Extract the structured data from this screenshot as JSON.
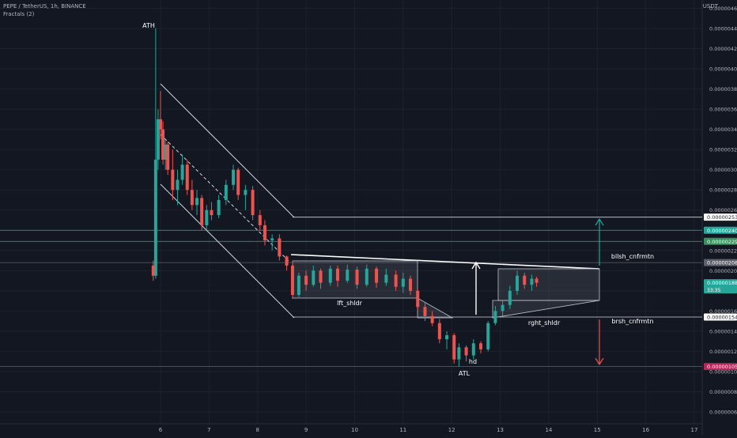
{
  "header": {
    "title": "PEPE / TetherUS, 1h, BINANCE",
    "indicator": "Fractals (2)",
    "currency": "USDT"
  },
  "chart_data": {
    "type": "candlestick",
    "x_ticks": [
      "6",
      "7",
      "8",
      "9",
      "10",
      "11",
      "12",
      "13",
      "14",
      "15",
      "16",
      "17"
    ],
    "y_ticks": [
      "0.00000460",
      "0.00000440",
      "0.00000420",
      "0.00000400",
      "0.00000380",
      "0.00000360",
      "0.00000340",
      "0.00000320",
      "0.00000300",
      "0.00000280",
      "0.00000260",
      "0.00000240",
      "0.00000220",
      "0.00000200",
      "0.00000180",
      "0.00000160",
      "0.00000140",
      "0.00000120",
      "0.00000100",
      "0.00000080",
      "0.00000060"
    ],
    "ylim": [
      5.5e-07,
      4.63e-06
    ],
    "xlim": [
      5.2,
      17.2
    ],
    "price_tags": [
      {
        "value": "0.00000253",
        "y": 2.53e-06,
        "bg": "#ffffff",
        "fg": "#131722"
      },
      {
        "value": "0.00000240",
        "y": 2.4e-06,
        "bg": "#26a69a",
        "fg": "#ffffff"
      },
      {
        "value": "0.00000229",
        "y": 2.29e-06,
        "bg": "#3b8f5e",
        "fg": "#ffffff"
      },
      {
        "value": "0.00000208",
        "y": 2.08e-06,
        "bg": "#5d606b",
        "fg": "#ffffff"
      },
      {
        "value": "0.00000188",
        "y": 1.88e-06,
        "bg": "#26a69a",
        "fg": "#ffffff",
        "sub": "33:35"
      },
      {
        "value": "0.00000154",
        "y": 1.54e-06,
        "bg": "#ffffff",
        "fg": "#131722"
      },
      {
        "value": "0.00000105",
        "y": 1.05e-06,
        "bg": "#b22858",
        "fg": "#ffffff"
      }
    ],
    "annotations": [
      "ATH",
      "lft_shldr",
      "hd",
      "ATL",
      "rght_shldr",
      "bllsh_cnfrmtn",
      "brsh_cnfrmtn"
    ],
    "candles": [
      [
        5.85,
        2.05e-06,
        2.1e-06,
        1.9e-06,
        1.95e-06
      ],
      [
        5.9,
        1.95e-06,
        4.4e-06,
        1.92e-06,
        3.1e-06
      ],
      [
        5.95,
        3.1e-06,
        3.6e-06,
        3e-06,
        3.5e-06
      ],
      [
        6.0,
        3.5e-06,
        3.78e-06,
        3.3e-06,
        3.4e-06
      ],
      [
        6.05,
        3.4e-06,
        3.48e-06,
        3.05e-06,
        3.1e-06
      ],
      [
        6.1,
        3.1e-06,
        3.3e-06,
        3e-06,
        3.25e-06
      ],
      [
        6.15,
        3.25e-06,
        3.28e-06,
        2.95e-06,
        3e-06
      ],
      [
        6.25,
        3e-06,
        3.2e-06,
        2.7e-06,
        2.8e-06
      ],
      [
        6.35,
        2.8e-06,
        3e-06,
        2.65e-06,
        2.9e-06
      ],
      [
        6.45,
        2.9e-06,
        3.15e-06,
        2.85e-06,
        3.05e-06
      ],
      [
        6.55,
        3.05e-06,
        3.1e-06,
        2.75e-06,
        2.8e-06
      ],
      [
        6.65,
        2.8e-06,
        2.9e-06,
        2.6e-06,
        2.65e-06
      ],
      [
        6.75,
        2.65e-06,
        2.8e-06,
        2.55e-06,
        2.72e-06
      ],
      [
        6.85,
        2.72e-06,
        2.75e-06,
        2.4e-06,
        2.45e-06
      ],
      [
        6.95,
        2.45e-06,
        2.65e-06,
        2.4e-06,
        2.6e-06
      ],
      [
        7.05,
        2.6e-06,
        2.68e-06,
        2.5e-06,
        2.55e-06
      ],
      [
        7.2,
        2.55e-06,
        2.75e-06,
        2.52e-06,
        2.7e-06
      ],
      [
        7.35,
        2.7e-06,
        2.9e-06,
        2.65e-06,
        2.85e-06
      ],
      [
        7.5,
        2.85e-06,
        3.05e-06,
        2.8e-06,
        3e-06
      ],
      [
        7.6,
        3e-06,
        3.02e-06,
        2.7e-06,
        2.75e-06
      ],
      [
        7.75,
        2.75e-06,
        2.85e-06,
        2.6e-06,
        2.8e-06
      ],
      [
        7.9,
        2.8e-06,
        2.84e-06,
        2.5e-06,
        2.55e-06
      ],
      [
        8.05,
        2.55e-06,
        2.6e-06,
        2.4e-06,
        2.45e-06
      ],
      [
        8.15,
        2.45e-06,
        2.5e-06,
        2.25e-06,
        2.3e-06
      ],
      [
        8.3,
        2.3e-06,
        2.36e-06,
        2.2e-06,
        2.32e-06
      ],
      [
        8.45,
        2.32e-06,
        2.36e-06,
        2.1e-06,
        2.14e-06
      ],
      [
        8.6,
        2.14e-06,
        2.15e-06,
        2e-06,
        2.05e-06
      ],
      [
        8.72,
        2.05e-06,
        2.1e-06,
        1.72e-06,
        1.76e-06
      ],
      [
        8.85,
        1.76e-06,
        1.98e-06,
        1.74e-06,
        1.95e-06
      ],
      [
        9.0,
        1.95e-06,
        2e-06,
        1.8e-06,
        1.86e-06
      ],
      [
        9.15,
        1.86e-06,
        2.05e-06,
        1.84e-06,
        2e-06
      ],
      [
        9.3,
        2e-06,
        2.02e-06,
        1.82e-06,
        1.88e-06
      ],
      [
        9.5,
        1.88e-06,
        2.05e-06,
        1.85e-06,
        2.02e-06
      ],
      [
        9.65,
        2.02e-06,
        2.05e-06,
        1.84e-06,
        1.9e-06
      ],
      [
        9.85,
        1.9e-06,
        2.06e-06,
        1.88e-06,
        2.01e-06
      ],
      [
        10.05,
        2.01e-06,
        2.04e-06,
        1.82e-06,
        1.86e-06
      ],
      [
        10.25,
        1.86e-06,
        2.06e-06,
        1.84e-06,
        2.02e-06
      ],
      [
        10.45,
        2.02e-06,
        2.04e-06,
        1.83e-06,
        1.88e-06
      ],
      [
        10.65,
        1.88e-06,
        2.02e-06,
        1.85e-06,
        1.96e-06
      ],
      [
        10.85,
        1.96e-06,
        2e-06,
        1.8e-06,
        1.84e-06
      ],
      [
        11.0,
        1.84e-06,
        1.98e-06,
        1.78e-06,
        1.92e-06
      ],
      [
        11.15,
        1.92e-06,
        1.95e-06,
        1.76e-06,
        1.8e-06
      ],
      [
        11.3,
        1.8e-06,
        1.82e-06,
        1.6e-06,
        1.64e-06
      ],
      [
        11.45,
        1.64e-06,
        1.68e-06,
        1.5e-06,
        1.55e-06
      ],
      [
        11.6,
        1.55e-06,
        1.6e-06,
        1.45e-06,
        1.48e-06
      ],
      [
        11.75,
        1.48e-06,
        1.52e-06,
        1.28e-06,
        1.32e-06
      ],
      [
        11.9,
        1.32e-06,
        1.4e-06,
        1.22e-06,
        1.36e-06
      ],
      [
        12.05,
        1.36e-06,
        1.38e-06,
        1.08e-06,
        1.12e-06
      ],
      [
        12.15,
        1.12e-06,
        1.28e-06,
        1.05e-06,
        1.24e-06
      ],
      [
        12.3,
        1.24e-06,
        1.26e-06,
        1.1e-06,
        1.16e-06
      ],
      [
        12.45,
        1.16e-06,
        1.32e-06,
        1.12e-06,
        1.28e-06
      ],
      [
        12.6,
        1.28e-06,
        1.3e-06,
        1.18e-06,
        1.22e-06
      ],
      [
        12.75,
        1.22e-06,
        1.5e-06,
        1.2e-06,
        1.48e-06
      ],
      [
        12.9,
        1.48e-06,
        1.65e-06,
        1.46e-06,
        1.6e-06
      ],
      [
        13.05,
        1.6e-06,
        1.7e-06,
        1.55e-06,
        1.66e-06
      ],
      [
        13.2,
        1.66e-06,
        1.85e-06,
        1.62e-06,
        1.8e-06
      ],
      [
        13.35,
        1.8e-06,
        2e-06,
        1.76e-06,
        1.95e-06
      ],
      [
        13.5,
        1.95e-06,
        1.98e-06,
        1.82e-06,
        1.86e-06
      ],
      [
        13.65,
        1.86e-06,
        1.96e-06,
        1.8e-06,
        1.92e-06
      ],
      [
        13.75,
        1.92e-06,
        1.94e-06,
        1.84e-06,
        1.88e-06
      ]
    ]
  }
}
